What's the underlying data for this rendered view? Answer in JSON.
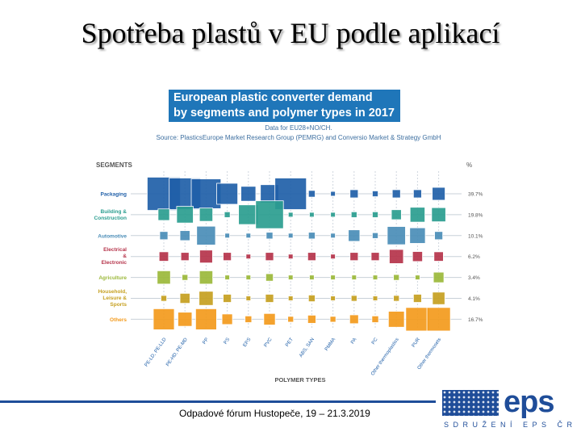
{
  "slide": {
    "title": "Spotřeba plastů v EU podle aplikací",
    "footer": "Odpadové fórum Hustopeče, 19 – 21.3.2019"
  },
  "logo": {
    "text": "eps",
    "subtitle": "SDRUŽENÍ EPS ČR"
  },
  "chart_data": {
    "type": "bubble-matrix",
    "title_line1": "European plastic converter demand",
    "title_line2": "by segments and polymer types in 2017",
    "data_note": "Data for EU28+NO/CH.",
    "source": "Source: PlasticsEurope Market Research Group (PEMRG) and Conversio Market & Strategy GmbH",
    "segments_label": "SEGMENTS",
    "percent_label": "%",
    "xlabel": "POLYMER TYPES",
    "segments": [
      {
        "name": "Packaging",
        "share": "39.7%",
        "color": "#1f5fa8"
      },
      {
        "name": "Building & Construction",
        "share": "19.8%",
        "color": "#2a9d8f"
      },
      {
        "name": "Automotive",
        "share": "10.1%",
        "color": "#4a8db7"
      },
      {
        "name": "Electrical & Electronic",
        "share": "6.2%",
        "color": "#b5334a"
      },
      {
        "name": "Agriculture",
        "share": "3.4%",
        "color": "#9bb83a"
      },
      {
        "name": "Household, Leisure & Sports",
        "share": "4.1%",
        "color": "#c6a020"
      },
      {
        "name": "Others",
        "share": "16.7%",
        "color": "#f39a1c"
      }
    ],
    "polymers": [
      "PE-LD, PE-LLD",
      "PE-HD, PE-MD",
      "PP",
      "PS",
      "EPS",
      "PVC",
      "PET",
      "ABS, SAN",
      "PMMA",
      "PA",
      "PC",
      "Other thermoplastics",
      "PUR",
      "Other thermosets"
    ],
    "magnitudes": [
      [
        10,
        9,
        8,
        4,
        2,
        3,
        9,
        0.4,
        0.2,
        0.6,
        0.3,
        0.6,
        0.6,
        1.5
      ],
      [
        1.2,
        2.5,
        1.6,
        0.3,
        3.5,
        7,
        0.2,
        0.2,
        0.2,
        0.3,
        0.3,
        0.9,
        2,
        1.8
      ],
      [
        0.6,
        0.9,
        3.2,
        0.2,
        0.2,
        0.4,
        0.2,
        0.4,
        0.2,
        1.2,
        0.3,
        3,
        2.2,
        0.6
      ],
      [
        0.8,
        0.6,
        1.5,
        0.6,
        0.2,
        0.6,
        0.2,
        0.6,
        0.2,
        0.6,
        0.6,
        1.8,
        0.9,
        0.8
      ],
      [
        1.6,
        0.3,
        1.6,
        0.2,
        0.2,
        0.5,
        0.2,
        0.2,
        0.2,
        0.2,
        0.2,
        0.3,
        0.2,
        1
      ],
      [
        0.3,
        0.9,
        1.8,
        0.6,
        0.2,
        0.6,
        0.2,
        0.4,
        0.2,
        0.3,
        0.2,
        0.3,
        0.6,
        1.4
      ],
      [
        4,
        1.8,
        4,
        1,
        0.4,
        1.2,
        0.3,
        0.6,
        0.3,
        0.7,
        0.4,
        2.3,
        5,
        5
      ]
    ]
  }
}
